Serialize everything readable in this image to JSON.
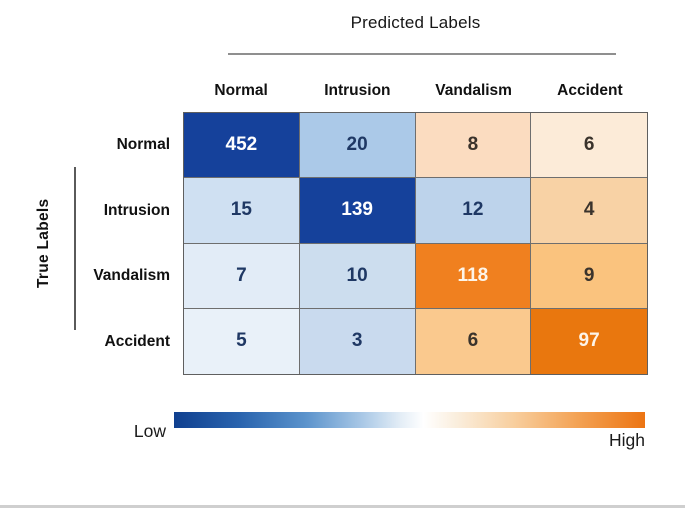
{
  "title": "Predicted Labels",
  "legend": {
    "low": "Low",
    "high": "High"
  },
  "chart_data": {
    "type": "heatmap",
    "title": "Predicted Labels",
    "xlabel": "Predicted Labels",
    "ylabel": "True Labels",
    "categories_predicted": [
      "Normal",
      "Intrusion",
      "Vandalism",
      "Accident"
    ],
    "categories_true": [
      "Normal",
      "Intrusion",
      "Vandalism",
      "Accident"
    ],
    "matrix": [
      [
        452,
        20,
        8,
        6
      ],
      [
        15,
        139,
        12,
        4
      ],
      [
        7,
        10,
        118,
        9
      ],
      [
        5,
        3,
        6,
        97
      ]
    ],
    "cell_colors": [
      [
        "#15419b",
        "#abc9e8",
        "#fbdcc0",
        "#fcebd8"
      ],
      [
        "#cfe0f2",
        "#15419b",
        "#bdd3eb",
        "#f8d2a5"
      ],
      [
        "#e2ecf7",
        "#ccddee",
        "#f0801f",
        "#fac37e"
      ],
      [
        "#e9f1f9",
        "#c9daee",
        "#fac98e",
        "#e9770e"
      ]
    ],
    "cell_text_colors": [
      [
        "#ffffff",
        "#1f3864",
        "#3a332c",
        "#3a332c"
      ],
      [
        "#1f3864",
        "#ffffff",
        "#1f3864",
        "#3a332c"
      ],
      [
        "#1f3864",
        "#1f3864",
        "#fdf4e8",
        "#3a332c"
      ],
      [
        "#1f3864",
        "#1f3864",
        "#3a332c",
        "#fdf4e8"
      ]
    ],
    "colorbar": {
      "low_label": "Low",
      "high_label": "High",
      "low_color": "#10408f",
      "mid_color": "#ffffff",
      "high_color": "#ec7412"
    },
    "legend_position": "bottom",
    "grid": true
  }
}
